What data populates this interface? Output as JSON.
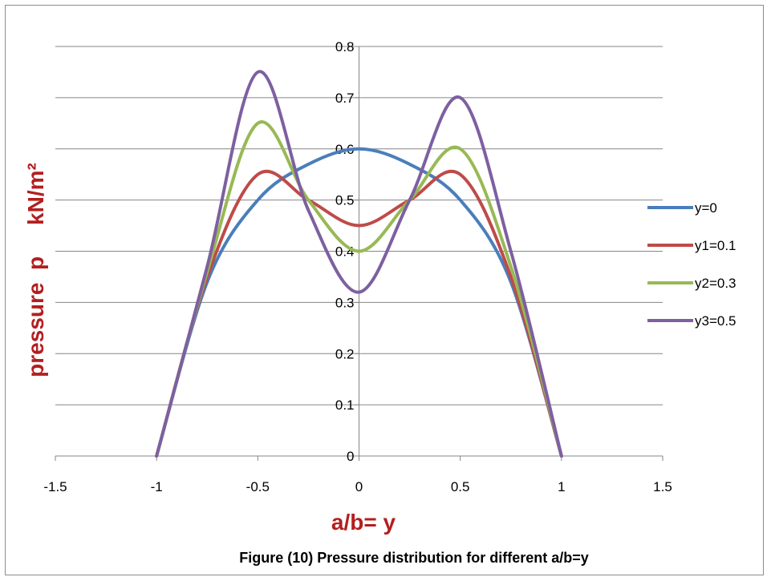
{
  "chart_data": {
    "type": "line",
    "caption": "Figure (10) Pressure distribution for different a/b=y",
    "xlabel": "a/b= y",
    "ylabel": "pressure  p     kN/m²",
    "xlim": [
      -1.5,
      1.5
    ],
    "ylim": [
      0,
      0.8
    ],
    "x_ticks": [
      "-1.5",
      "-1",
      "-0.5",
      "0",
      "0.5",
      "1",
      "1.5"
    ],
    "y_ticks": [
      "0",
      "0.1",
      "0.2",
      "0.3",
      "0.4",
      "0.5",
      "0.6",
      "0.7",
      "0.8"
    ],
    "grid": "horizontal",
    "smooth": true,
    "legend_position": "right",
    "x": [
      -1,
      -0.75,
      -0.5,
      -0.25,
      0,
      0.25,
      0.5,
      0.75,
      1
    ],
    "series": [
      {
        "name": "y=0",
        "color": "#4a7ebb",
        "values": [
          0,
          0.34,
          0.5,
          0.57,
          0.6,
          0.57,
          0.5,
          0.34,
          0
        ]
      },
      {
        "name": "y1=0.1",
        "color": "#be4b48",
        "values": [
          0,
          0.35,
          0.55,
          0.5,
          0.45,
          0.5,
          0.55,
          0.35,
          0
        ]
      },
      {
        "name": "y2=0.3",
        "color": "#98b954",
        "values": [
          0,
          0.36,
          0.65,
          0.5,
          0.4,
          0.5,
          0.6,
          0.37,
          0
        ]
      },
      {
        "name": "y3=0.5",
        "color": "#7d60a0",
        "values": [
          0,
          0.37,
          0.75,
          0.48,
          0.32,
          0.5,
          0.7,
          0.4,
          0
        ]
      }
    ]
  }
}
